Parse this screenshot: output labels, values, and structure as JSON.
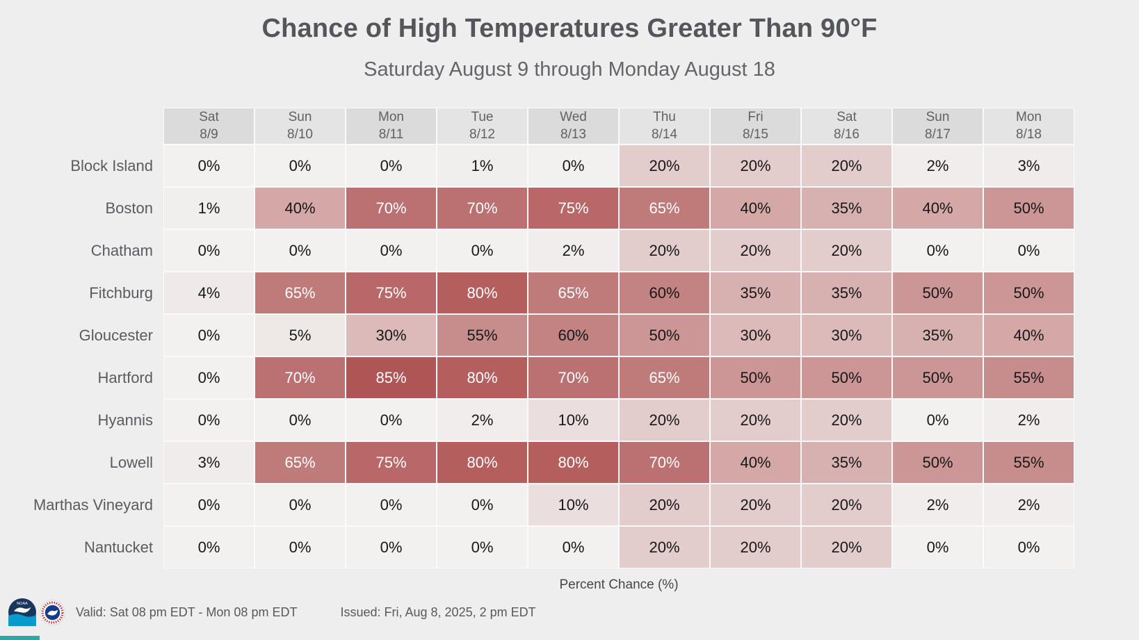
{
  "page": {
    "background_color": "#efeeee"
  },
  "chart_data": {
    "type": "heatmap",
    "title": "Chance of High Temperatures Greater Than 90°F",
    "subtitle": "Saturday August 9 through Monday August 18",
    "caption": "Percent Chance (%)",
    "unit": "%",
    "legend_position": "bottom",
    "columns": [
      {
        "day": "Sat",
        "date": "8/9"
      },
      {
        "day": "Sun",
        "date": "8/10"
      },
      {
        "day": "Mon",
        "date": "8/11"
      },
      {
        "day": "Tue",
        "date": "8/12"
      },
      {
        "day": "Wed",
        "date": "8/13"
      },
      {
        "day": "Thu",
        "date": "8/14"
      },
      {
        "day": "Fri",
        "date": "8/15"
      },
      {
        "day": "Sat",
        "date": "8/16"
      },
      {
        "day": "Sun",
        "date": "8/17"
      },
      {
        "day": "Mon",
        "date": "8/18"
      }
    ],
    "rows": [
      {
        "label": "Block Island",
        "values": [
          0,
          0,
          0,
          1,
          0,
          20,
          20,
          20,
          2,
          3
        ]
      },
      {
        "label": "Boston",
        "values": [
          1,
          40,
          70,
          70,
          75,
          65,
          40,
          35,
          40,
          50
        ]
      },
      {
        "label": "Chatham",
        "values": [
          0,
          0,
          0,
          0,
          2,
          20,
          20,
          20,
          0,
          0
        ]
      },
      {
        "label": "Fitchburg",
        "values": [
          4,
          65,
          75,
          80,
          65,
          60,
          35,
          35,
          50,
          50
        ]
      },
      {
        "label": "Gloucester",
        "values": [
          0,
          5,
          30,
          55,
          60,
          50,
          30,
          30,
          35,
          40
        ]
      },
      {
        "label": "Hartford",
        "values": [
          0,
          70,
          85,
          80,
          70,
          65,
          50,
          50,
          50,
          55
        ]
      },
      {
        "label": "Hyannis",
        "values": [
          0,
          0,
          0,
          2,
          10,
          20,
          20,
          20,
          0,
          2
        ]
      },
      {
        "label": "Lowell",
        "values": [
          3,
          65,
          75,
          80,
          80,
          70,
          40,
          35,
          50,
          55
        ]
      },
      {
        "label": "Marthas Vineyard",
        "values": [
          0,
          0,
          0,
          0,
          10,
          20,
          20,
          20,
          2,
          2
        ]
      },
      {
        "label": "Nantucket",
        "values": [
          0,
          0,
          0,
          0,
          0,
          20,
          20,
          20,
          0,
          0
        ]
      }
    ],
    "color_scale": {
      "min_value": 0,
      "max_value": 100,
      "min_color": "#f2f1f0",
      "max_color": "#a43a3a",
      "white_text_threshold": 65
    },
    "header_colors": {
      "even": "#dcdbdb",
      "odd": "#e5e4e4"
    }
  },
  "footer": {
    "valid_label": "Valid: Sat 08 pm EDT - Mon 08 pm EDT",
    "issued_label": "Issued: Fri, Aug 8, 2025, 2 pm EDT",
    "logos": [
      "noaa-logo",
      "nws-logo"
    ],
    "accent_strip_color": "#2fa8a2"
  }
}
